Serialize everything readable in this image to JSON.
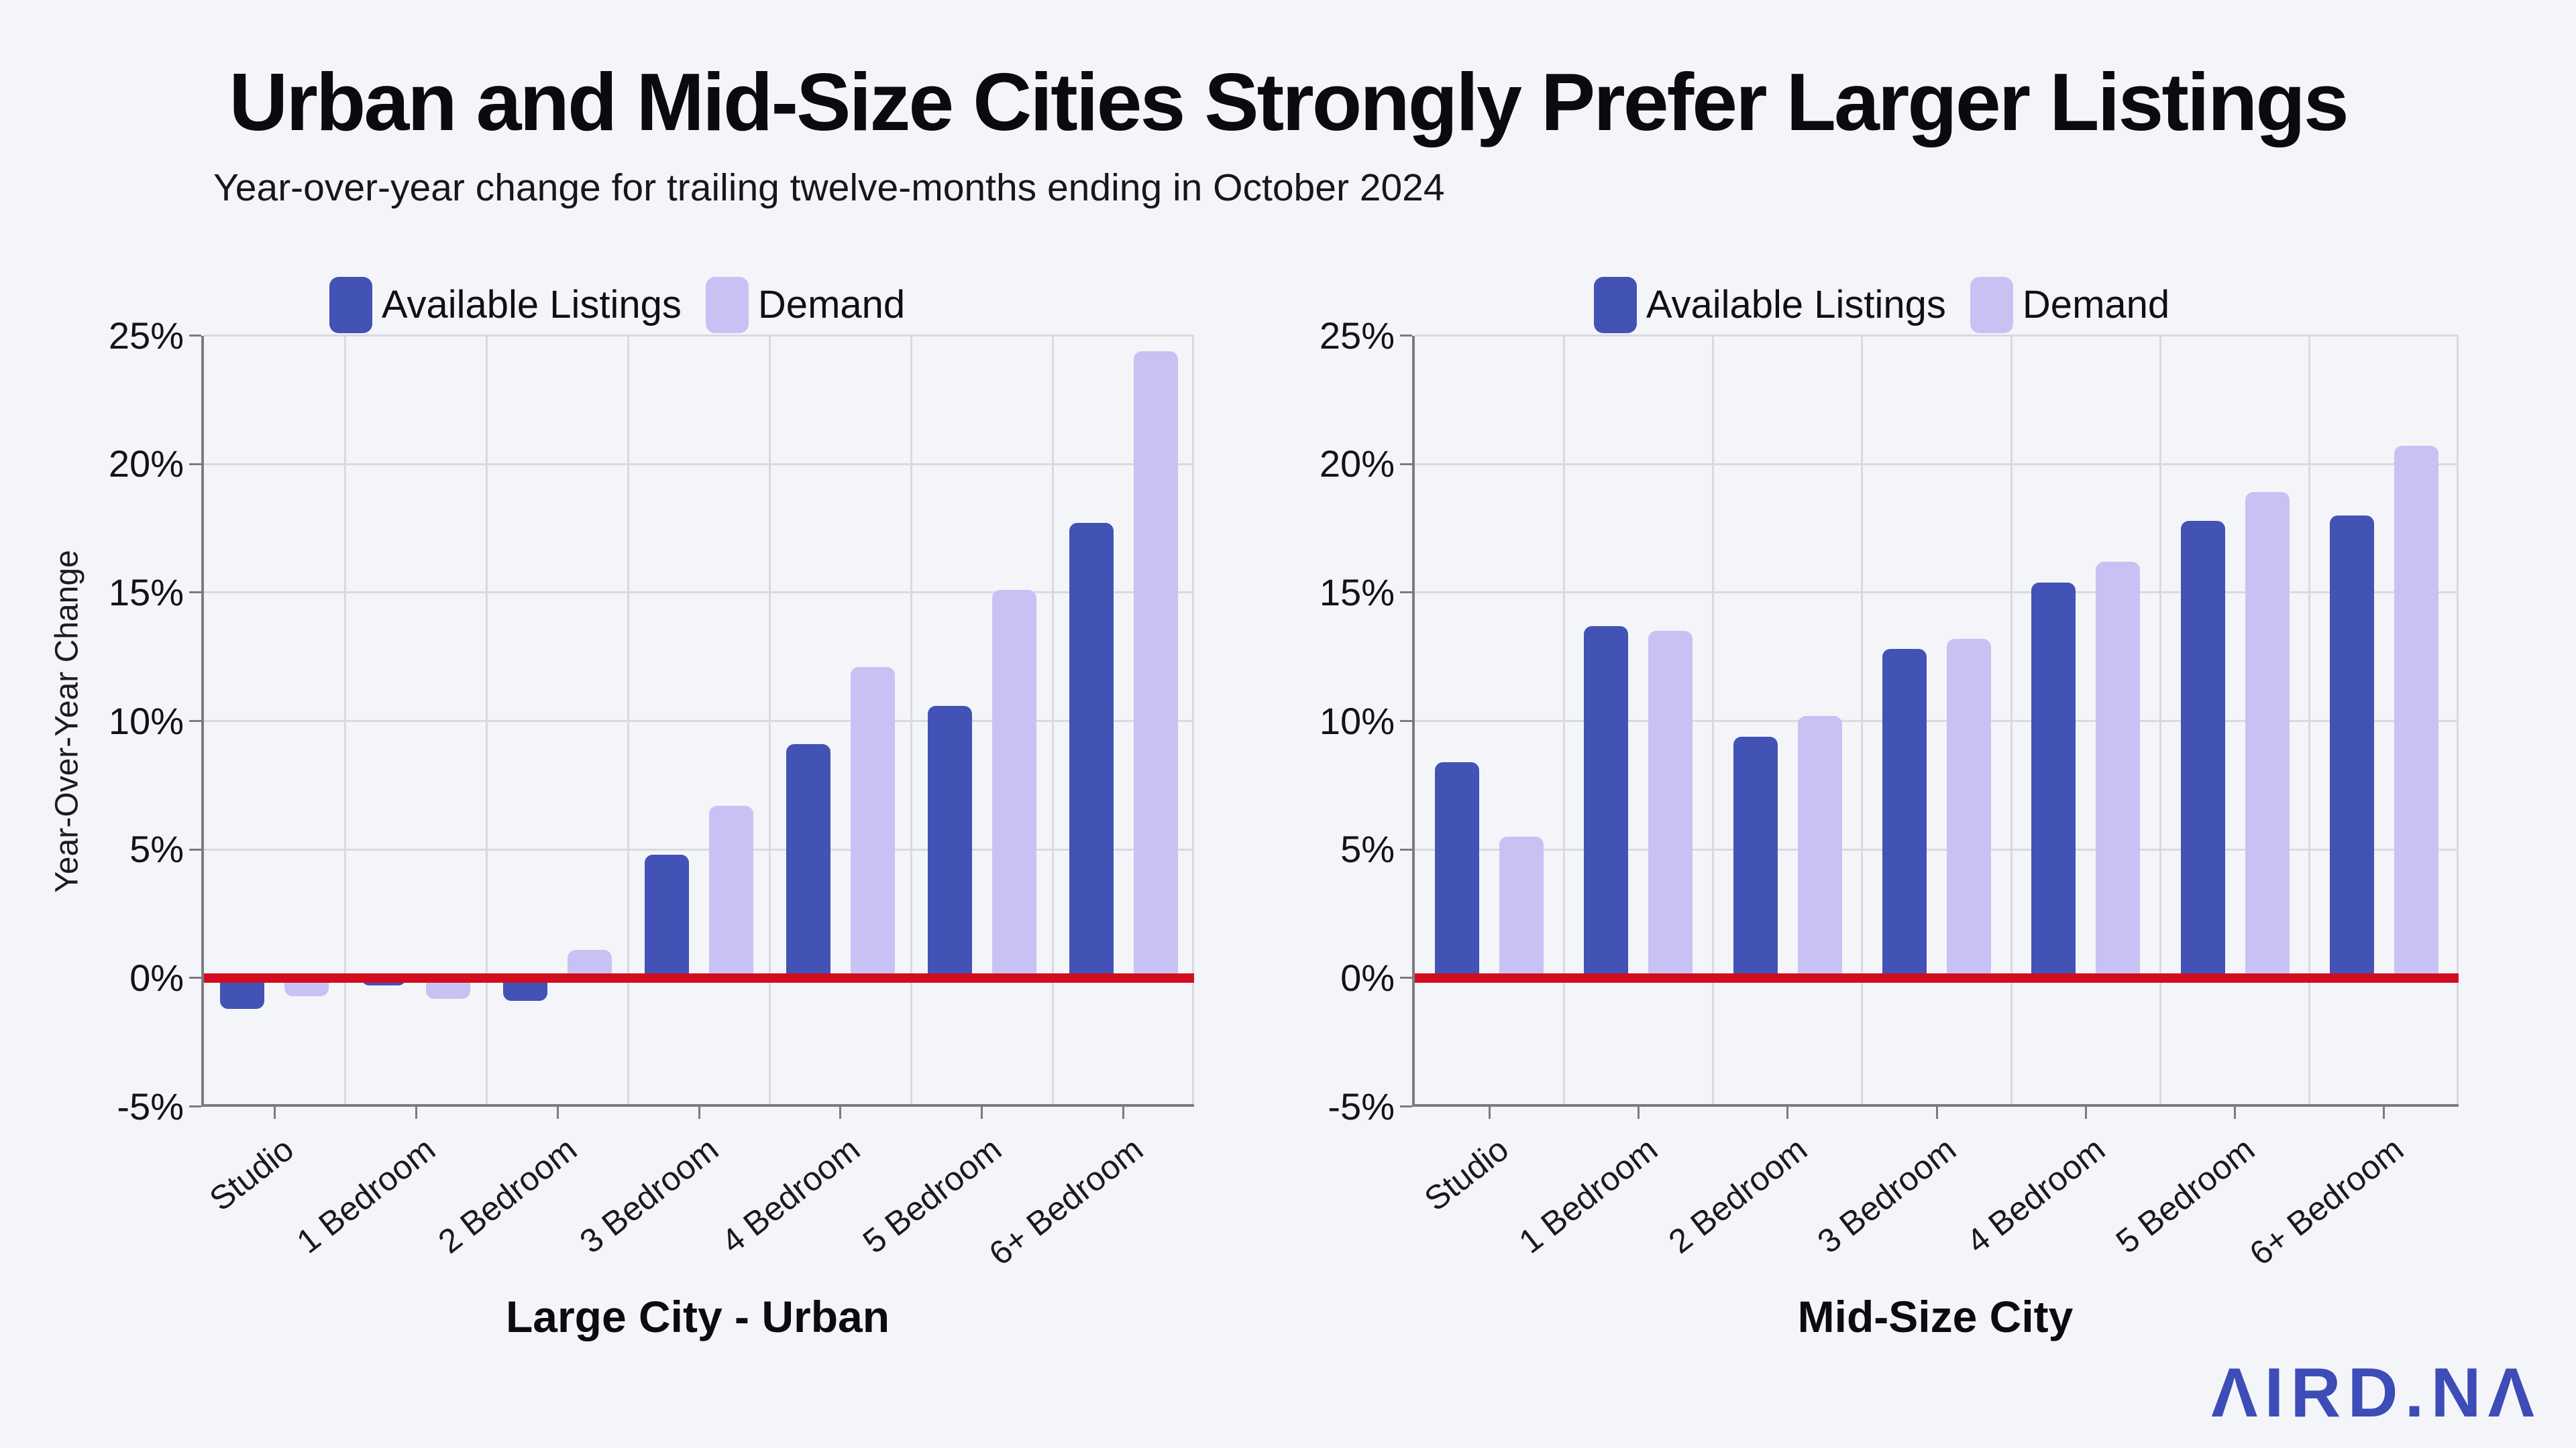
{
  "page": {
    "background": "#f4f5f9"
  },
  "header": {
    "title": "Urban and Mid-Size Cities Strongly Prefer Larger Listings",
    "subtitle": "Year-over-year change for trailing twelve-months ending in October 2024"
  },
  "colors": {
    "available": "#4352b5",
    "demand": "#c8c2f4",
    "zero_line": "#d20d1f",
    "gridline": "#d9dae0",
    "axis": "#7b7b83",
    "logo": "#3e4cb7"
  },
  "footer": {
    "logo_text": "AIRDNA",
    "logo_display": "ΛIRD.NΛ"
  },
  "chart_data": [
    {
      "type": "bar",
      "title": "Large City - Urban",
      "ylabel": "Year-Over-Year Change",
      "ylim": [
        -5,
        25
      ],
      "grid": true,
      "legend_position": "top",
      "zero_line_at": 0,
      "yticks": [
        {
          "label": "25%",
          "value": 25
        },
        {
          "label": "20%",
          "value": 20
        },
        {
          "label": "15%",
          "value": 15
        },
        {
          "label": "10%",
          "value": 10
        },
        {
          "label": "5%",
          "value": 5
        },
        {
          "label": "0%",
          "value": 0
        },
        {
          "label": "-5%",
          "value": -5
        }
      ],
      "categories": [
        "Studio",
        "1 Bedroom",
        "2 Bedroom",
        "3 Bedroom",
        "4 Bedroom",
        "5 Bedroom",
        "6+ Bedroom"
      ],
      "series": [
        {
          "name": "Available Listings",
          "color_key": "available",
          "values": [
            -1.2,
            -0.3,
            -0.9,
            4.8,
            9.1,
            10.6,
            17.7
          ]
        },
        {
          "name": "Demand",
          "color_key": "demand",
          "values": [
            -0.7,
            -0.8,
            1.1,
            6.7,
            12.1,
            15.1,
            24.4
          ]
        }
      ]
    },
    {
      "type": "bar",
      "title": "Mid-Size City",
      "ylabel": "",
      "ylim": [
        -5,
        25
      ],
      "grid": true,
      "legend_position": "top",
      "zero_line_at": 0,
      "yticks": [
        {
          "label": "25%",
          "value": 25
        },
        {
          "label": "20%",
          "value": 20
        },
        {
          "label": "15%",
          "value": 15
        },
        {
          "label": "10%",
          "value": 10
        },
        {
          "label": "5%",
          "value": 5
        },
        {
          "label": "0%",
          "value": 0
        },
        {
          "label": "-5%",
          "value": -5
        }
      ],
      "categories": [
        "Studio",
        "1 Bedroom",
        "2 Bedroom",
        "3 Bedroom",
        "4 Bedroom",
        "5 Bedroom",
        "6+ Bedroom"
      ],
      "series": [
        {
          "name": "Available Listings",
          "color_key": "available",
          "values": [
            8.4,
            13.7,
            9.4,
            12.8,
            15.4,
            17.8,
            18.0
          ]
        },
        {
          "name": "Demand",
          "color_key": "demand",
          "values": [
            5.5,
            13.5,
            10.2,
            13.2,
            16.2,
            18.9,
            20.7
          ]
        }
      ]
    }
  ]
}
